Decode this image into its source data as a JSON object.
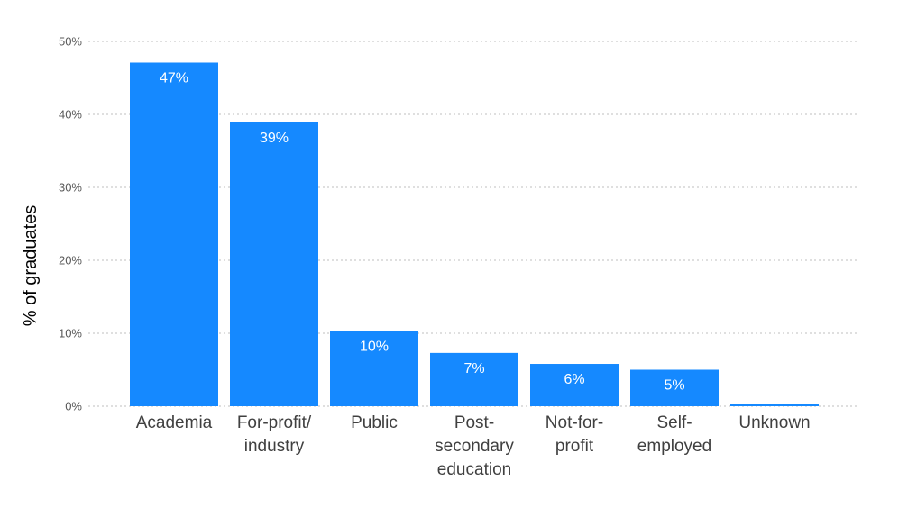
{
  "chart_data": {
    "type": "bar",
    "title": "",
    "xlabel": "",
    "ylabel": "% of graduates",
    "ylim": [
      0,
      50
    ],
    "yticks": [
      0,
      10,
      20,
      30,
      40,
      50
    ],
    "ytick_labels": [
      "0%",
      "10%",
      "20%",
      "30%",
      "40%",
      "50%"
    ],
    "grid": true,
    "legend": "none",
    "bar_color": "#1589FF",
    "categories": [
      [
        "Academia"
      ],
      [
        "For-profit/",
        "industry"
      ],
      [
        "Public"
      ],
      [
        "Post-",
        "secondary",
        "education"
      ],
      [
        "Not-for-",
        "profit"
      ],
      [
        "Self-",
        "employed"
      ],
      [
        "Unknown"
      ]
    ],
    "values": [
      47.1,
      38.9,
      10.3,
      7.3,
      5.8,
      5.0,
      0.3
    ],
    "data_labels": [
      "47%",
      "39%",
      "10%",
      "7%",
      "6%",
      "5%",
      ""
    ]
  }
}
